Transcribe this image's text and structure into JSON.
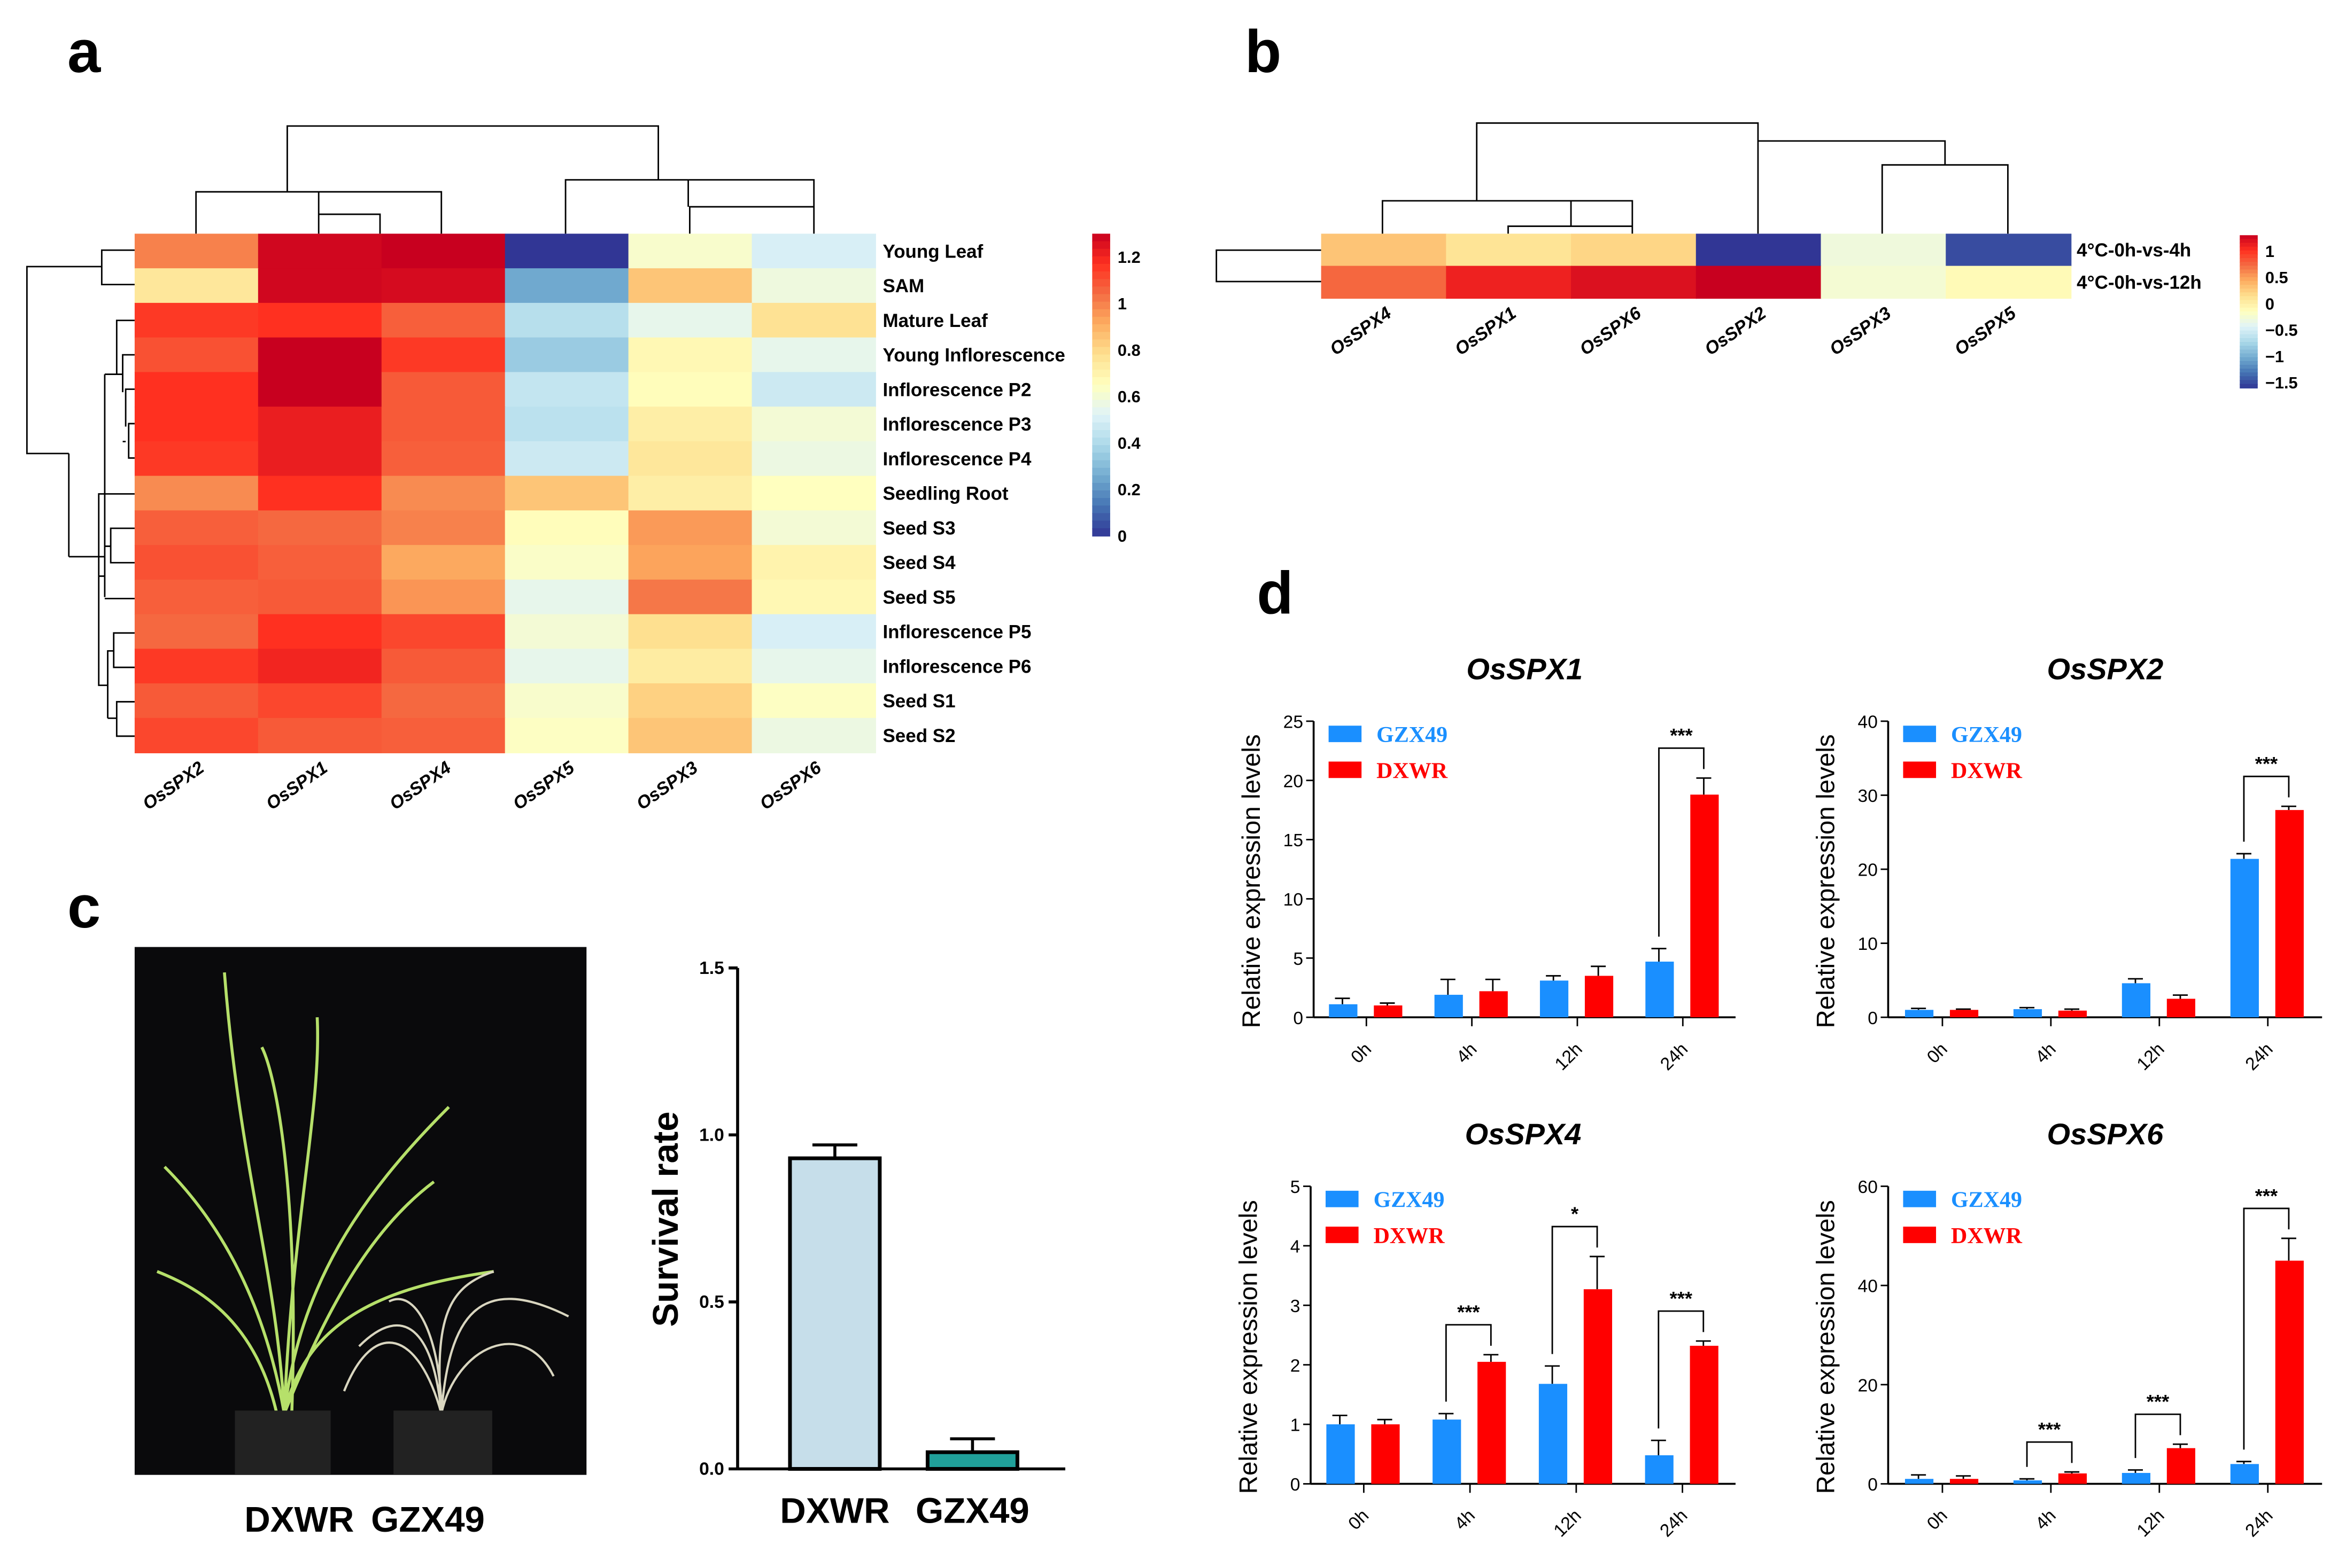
{
  "panel_letters": {
    "a": "a",
    "b": "b",
    "c": "c",
    "d": "d"
  },
  "chart_data": [
    {
      "id": "a",
      "type": "heatmap",
      "title": "",
      "columns": [
        "OsSPX2",
        "OsSPX1",
        "OsSPX4",
        "OsSPX5",
        "OsSPX3",
        "OsSPX6"
      ],
      "rows": [
        "Young Leaf",
        "SAM",
        "Mature Leaf",
        "Young Inflorescence",
        "Inflorescence P2",
        "Inflorescence P3",
        "Inflorescence P4",
        "Seedling Root",
        "Seed S3",
        "Seed S4",
        "Seed S5",
        "Inflorescence P5",
        "Inflorescence P6",
        "Seed S1",
        "Seed S2"
      ],
      "values": [
        [
          1.0,
          1.28,
          1.3,
          0.0,
          0.62,
          0.5
        ],
        [
          0.75,
          1.28,
          1.27,
          0.25,
          0.85,
          0.58
        ],
        [
          1.15,
          1.17,
          1.07,
          0.42,
          0.55,
          0.77
        ],
        [
          1.1,
          1.3,
          1.15,
          0.35,
          0.68,
          0.55
        ],
        [
          1.17,
          1.3,
          1.08,
          0.45,
          0.66,
          0.47
        ],
        [
          1.17,
          1.22,
          1.08,
          0.43,
          0.72,
          0.6
        ],
        [
          1.15,
          1.22,
          1.07,
          0.47,
          0.75,
          0.57
        ],
        [
          0.98,
          1.17,
          0.98,
          0.85,
          0.72,
          0.65
        ],
        [
          1.07,
          1.05,
          1.0,
          0.66,
          0.95,
          0.6
        ],
        [
          1.1,
          1.07,
          0.92,
          0.63,
          0.93,
          0.7
        ],
        [
          1.07,
          1.08,
          0.96,
          0.55,
          1.02,
          0.68
        ],
        [
          1.05,
          1.17,
          1.12,
          0.6,
          0.78,
          0.5
        ],
        [
          1.15,
          1.2,
          1.08,
          0.55,
          0.73,
          0.55
        ],
        [
          1.08,
          1.12,
          1.05,
          0.62,
          0.82,
          0.64
        ],
        [
          1.12,
          1.08,
          1.07,
          0.64,
          0.85,
          0.57
        ]
      ],
      "color_range": [
        0,
        1.3
      ],
      "colorbar_ticks": [
        "1.2",
        "1",
        "0.8",
        "0.6",
        "0.4",
        "0.2",
        "0"
      ],
      "colorbar_tick_values": [
        1.2,
        1,
        0.8,
        0.6,
        0.4,
        0.2,
        0
      ],
      "palette": [
        "#313695",
        "#4575b4",
        "#74add1",
        "#abd9e9",
        "#e0f3f8",
        "#ffffbf",
        "#fee090",
        "#fdae61",
        "#f46d43",
        "#ff3020",
        "#c8001f"
      ]
    },
    {
      "id": "b",
      "type": "heatmap",
      "columns": [
        "OsSPX4",
        "OsSPX1",
        "OsSPX6",
        "OsSPX2",
        "OsSPX3",
        "OsSPX5"
      ],
      "rows": [
        "4°C-0h-vs-4h",
        "4°C-0h-vs-12h"
      ],
      "values": [
        [
          0.3,
          0.1,
          0.2,
          -1.6,
          -0.3,
          -1.5
        ],
        [
          0.75,
          1.1,
          1.2,
          1.3,
          -0.25,
          -0.1
        ]
      ],
      "color_range": [
        -1.6,
        1.3
      ],
      "colorbar_ticks": [
        "1",
        "0.5",
        "0",
        "−0.5",
        "−1",
        "−1.5"
      ],
      "colorbar_tick_values": [
        1,
        0.5,
        0,
        -0.5,
        -1,
        -1.5
      ]
    },
    {
      "id": "c",
      "type": "bar",
      "categories": [
        "DXWR",
        "GZX49"
      ],
      "values": [
        0.93,
        0.05
      ],
      "errors": [
        0.04,
        0.04
      ],
      "colors": [
        "#c6deea",
        "#20a09a"
      ],
      "ylabel": "Survival rate",
      "ylim": [
        0,
        1.5
      ],
      "yticks": [
        "0.0",
        "0.5",
        "1.0",
        "1.5"
      ],
      "ytick_values": [
        0,
        0.5,
        1.0,
        1.5
      ],
      "photo_labels": [
        "DXWR",
        "GZX49"
      ]
    },
    {
      "id": "d",
      "type": "bar",
      "subplots": [
        {
          "title": "OsSPX1",
          "ylim": [
            0,
            25
          ],
          "yticks": [
            0,
            5,
            10,
            15,
            20,
            25
          ],
          "series": [
            {
              "name": "GZX49",
              "values": [
                1.1,
                1.9,
                3.1,
                4.7
              ],
              "errors": [
                0.5,
                1.3,
                0.4,
                1.1
              ]
            },
            {
              "name": "DXWR",
              "values": [
                1.0,
                2.2,
                3.5,
                18.8
              ],
              "errors": [
                0.2,
                1.0,
                0.8,
                1.4
              ]
            }
          ],
          "significance": [
            "",
            "",
            "",
            "***"
          ]
        },
        {
          "title": "OsSPX2",
          "ylim": [
            0,
            40
          ],
          "yticks": [
            0,
            10,
            20,
            30,
            40
          ],
          "series": [
            {
              "name": "GZX49",
              "values": [
                1.0,
                1.1,
                4.6,
                21.4
              ],
              "errors": [
                0.2,
                0.2,
                0.6,
                0.7
              ]
            },
            {
              "name": "DXWR",
              "values": [
                1.0,
                0.9,
                2.5,
                28.0
              ],
              "errors": [
                0.1,
                0.2,
                0.5,
                0.5
              ]
            }
          ],
          "significance": [
            "",
            "",
            "",
            "***"
          ]
        },
        {
          "title": "OsSPX4",
          "ylim": [
            0,
            5
          ],
          "yticks": [
            0,
            1,
            2,
            3,
            4,
            5
          ],
          "series": [
            {
              "name": "GZX49",
              "values": [
                1.0,
                1.08,
                1.68,
                0.48
              ],
              "errors": [
                0.15,
                0.1,
                0.3,
                0.25
              ]
            },
            {
              "name": "DXWR",
              "values": [
                1.0,
                2.05,
                3.27,
                2.32
              ],
              "errors": [
                0.08,
                0.12,
                0.55,
                0.08
              ]
            }
          ],
          "significance": [
            "",
            "***",
            "*",
            "***"
          ]
        },
        {
          "title": "OsSPX6",
          "ylim": [
            0,
            60
          ],
          "yticks": [
            0,
            20,
            40,
            60
          ],
          "series": [
            {
              "name": "GZX49",
              "values": [
                1.0,
                0.7,
                2.2,
                4.0
              ],
              "errors": [
                0.8,
                0.3,
                0.6,
                0.5
              ]
            },
            {
              "name": "DXWR",
              "values": [
                1.0,
                2.1,
                7.2,
                45.0
              ],
              "errors": [
                0.6,
                0.3,
                0.8,
                4.5
              ]
            }
          ],
          "significance": [
            "",
            "***",
            "***",
            "***"
          ]
        }
      ],
      "categories": [
        "0h",
        "4h",
        "12h",
        "24h"
      ],
      "ylabel": "Relative  expression levels",
      "legend": [
        "GZX49",
        "DXWR"
      ],
      "legend_placement": "top-left",
      "colors": {
        "GZX49": "#1a8fff",
        "DXWR": "#ff0000"
      }
    }
  ]
}
